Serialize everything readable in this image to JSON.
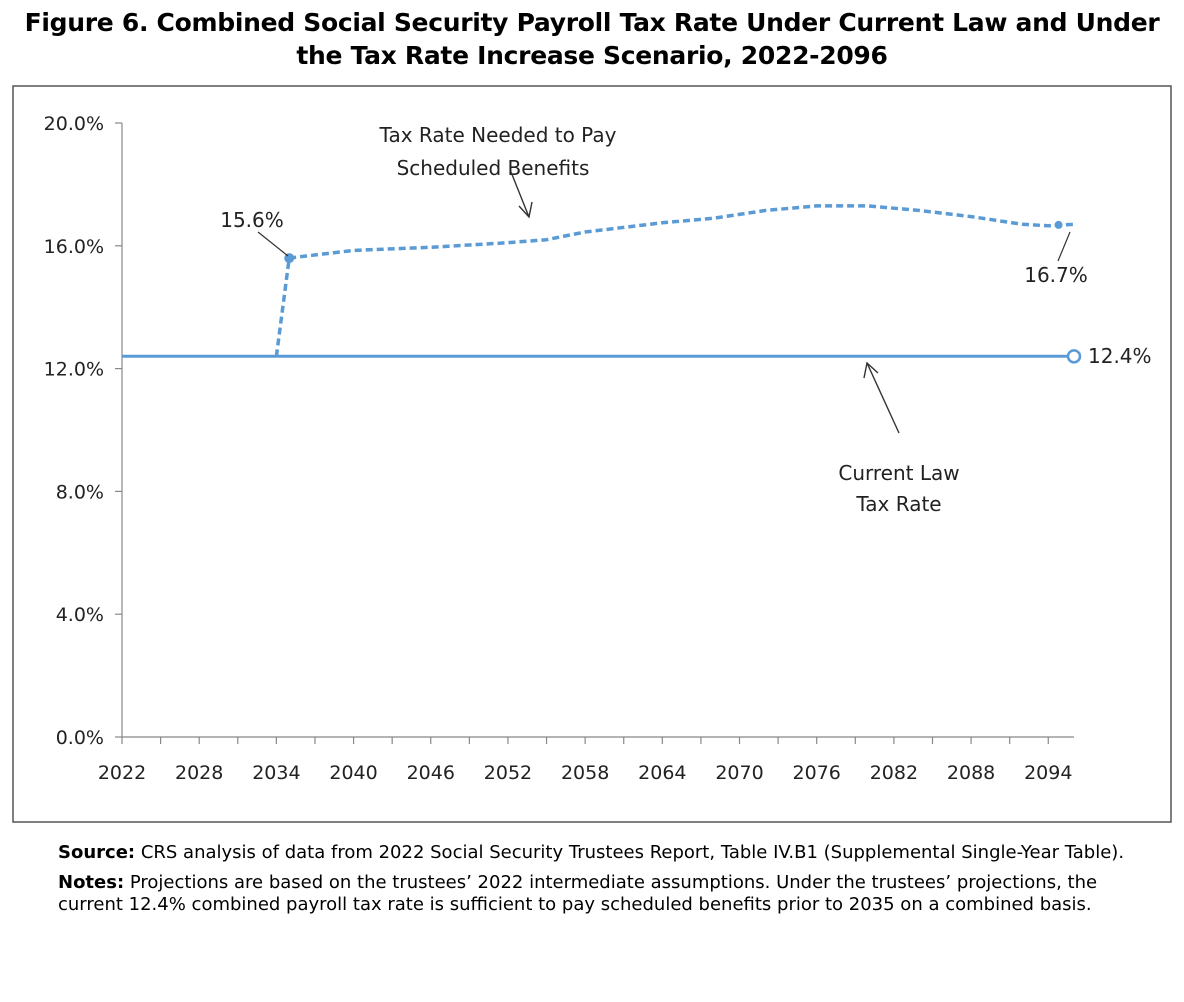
{
  "figure": {
    "title_line1": "Figure 6. Combined Social Security Payroll Tax Rate Under Current Law and Under",
    "title_line2": "the Tax Rate Increase Scenario, 2022-2096"
  },
  "chart_data": {
    "type": "line",
    "title": "Figure 6. Combined Social Security Payroll Tax Rate Under Current Law and Under the Tax Rate Increase Scenario, 2022-2096",
    "xlabel": "",
    "ylabel": "",
    "xlim": [
      2022,
      2096
    ],
    "ylim": [
      0,
      20
    ],
    "x_ticks": [
      2022,
      2028,
      2034,
      2040,
      2046,
      2052,
      2058,
      2064,
      2070,
      2076,
      2082,
      2088,
      2094
    ],
    "x_tick_labels": [
      "2022",
      "2028",
      "2034",
      "2040",
      "2046",
      "2052",
      "2058",
      "2064",
      "2070",
      "2076",
      "2082",
      "2088",
      "2094"
    ],
    "y_ticks": [
      0,
      4,
      8,
      12,
      16,
      20
    ],
    "y_tick_labels": [
      "0.0%",
      "4.0%",
      "8.0%",
      "12.0%",
      "16.0%",
      "20.0%"
    ],
    "grid": false,
    "series": [
      {
        "name": "Current Law Tax Rate",
        "style": "solid",
        "color": "#5b9bd5",
        "x": [
          2022,
          2096
        ],
        "values": [
          12.4,
          12.4
        ]
      },
      {
        "name": "Tax Rate Needed to Pay Scheduled Benefits",
        "style": "dashed",
        "color": "#5b9bd5",
        "x": [
          2034,
          2035,
          2036,
          2040,
          2046,
          2052,
          2055,
          2058,
          2064,
          2068,
          2072,
          2076,
          2080,
          2084,
          2088,
          2092,
          2094,
          2096
        ],
        "values": [
          12.4,
          15.6,
          15.65,
          15.85,
          15.95,
          16.1,
          16.2,
          16.45,
          16.75,
          16.9,
          17.15,
          17.3,
          17.3,
          17.15,
          16.95,
          16.7,
          16.65,
          16.7
        ]
      }
    ],
    "annotations": [
      {
        "text": "15.6%",
        "x": 2035,
        "y": 15.6
      },
      {
        "text": "16.7%",
        "x": 2096,
        "y": 16.7
      },
      {
        "text": "12.4%",
        "x": 2096,
        "y": 12.4
      },
      {
        "text_line1": "Tax Rate Needed to Pay",
        "text_line2": "Scheduled Benefits"
      },
      {
        "text_line1": "Current Law",
        "text_line2": "Tax Rate"
      }
    ]
  },
  "notes": {
    "source_label": "Source:",
    "source_text": " CRS analysis of data from 2022 Social Security Trustees Report, Table IV.B1 (Supplemental Single-Year Table).",
    "notes_label": "Notes:",
    "notes_text": " Projections are based on the trustees’ 2022 intermediate assumptions. Under the trustees’ projections, the current 12.4% combined payroll tax rate is sufficient to pay scheduled benefits prior to 2035 on a combined basis."
  }
}
